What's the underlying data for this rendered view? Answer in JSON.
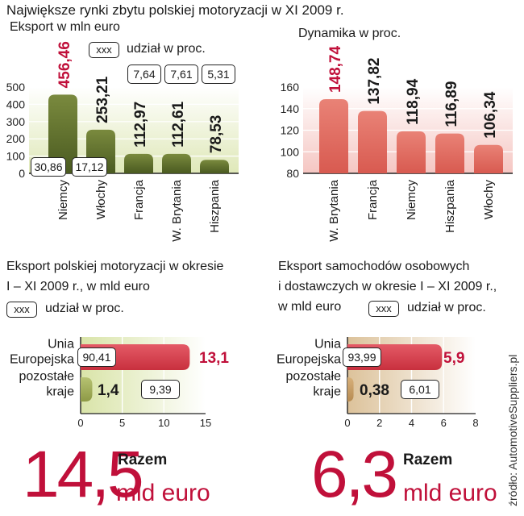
{
  "header": {
    "title": "Największe rynki zbytu polskiej motoryzacji w XI 2009 r."
  },
  "panel_export_month": {
    "subtitle": "Eksport w mln euro",
    "legend_box": "xxx",
    "legend_text": "udział w proc."
  },
  "panel_dynamics": {
    "subtitle": "Dynamika w proc."
  },
  "panel_export_year": {
    "subtitle_line1": "Eksport polskiej motoryzacji w okresie",
    "subtitle_line2": "I – XI 2009 r., w mld euro",
    "legend_box": "xxx",
    "legend_text": "udział w proc.",
    "total_value": "14,5",
    "total_label": "Razem",
    "total_unit": "mld euro"
  },
  "panel_cars_year": {
    "subtitle_line1": "Eksport samochodów osobowych",
    "subtitle_line2": "i dostawczych w okresie I – XI 2009 r.,",
    "subtitle_line3": "w mld euro",
    "legend_box": "xxx",
    "legend_text": "udział w proc.",
    "total_value": "6,3",
    "total_label": "Razem",
    "total_unit": "mld euro"
  },
  "source": "źródło: AutomotiveSuppliers.pl",
  "colors": {
    "olive": "#5b6b2a",
    "red": "#d83a4a",
    "salmon": "#e0685e",
    "tan": "#c9a46e",
    "accent": "#c0103a"
  },
  "chart_data": [
    {
      "type": "bar",
      "title": "Eksport w mln euro",
      "categories": [
        "Niemcy",
        "Włochy",
        "Francja",
        "W. Brytania",
        "Hiszpania"
      ],
      "values": [
        456.46,
        253.21,
        112.97,
        112.61,
        78.53
      ],
      "value_labels": [
        "456,46",
        "253,21",
        "112,97",
        "112,61",
        "78,53"
      ],
      "share_labels": [
        "30,86",
        "17,12",
        "7,64",
        "7,61",
        "5,31"
      ],
      "yticks": [
        "0",
        "100",
        "200",
        "300",
        "400",
        "500"
      ],
      "ylim": [
        0,
        500
      ]
    },
    {
      "type": "bar",
      "title": "Dynamika w proc.",
      "categories": [
        "W. Brytania",
        "Francja",
        "Niemcy",
        "Hiszpania",
        "Włochy"
      ],
      "values": [
        148.74,
        137.82,
        118.94,
        116.89,
        106.34
      ],
      "value_labels": [
        "148,74",
        "137,82",
        "118,94",
        "116,89",
        "106,34"
      ],
      "yticks": [
        "80",
        "100",
        "120",
        "140",
        "160"
      ],
      "ylim": [
        80,
        160
      ]
    },
    {
      "type": "bar",
      "title": "Eksport polskiej motoryzacji w okresie I – XI 2009 r., w mld euro",
      "categories": [
        "Unia Europejska",
        "pozostałe kraje"
      ],
      "category_lines": [
        [
          "Unia",
          "Europejska"
        ],
        [
          "pozostałe",
          "kraje"
        ]
      ],
      "values": [
        13.1,
        1.4
      ],
      "value_labels": [
        "13,1",
        "1,4"
      ],
      "share_labels": [
        "90,41",
        "9,39"
      ],
      "xticks": [
        "0",
        "5",
        "10",
        "15"
      ],
      "xlim": [
        0,
        15
      ]
    },
    {
      "type": "bar",
      "title": "Eksport samochodów osobowych i dostawczych w okresie I – XI 2009 r., w mld euro",
      "categories": [
        "Unia Europejska",
        "pozostałe kraje"
      ],
      "category_lines": [
        [
          "Unia",
          "Europejska"
        ],
        [
          "pozostałe",
          "kraje"
        ]
      ],
      "values": [
        5.9,
        0.38
      ],
      "value_labels": [
        "5,9",
        "0,38"
      ],
      "share_labels": [
        "93,99",
        "6,01"
      ],
      "xticks": [
        "0",
        "2",
        "4",
        "6",
        "8"
      ],
      "xlim": [
        0,
        8
      ]
    }
  ]
}
